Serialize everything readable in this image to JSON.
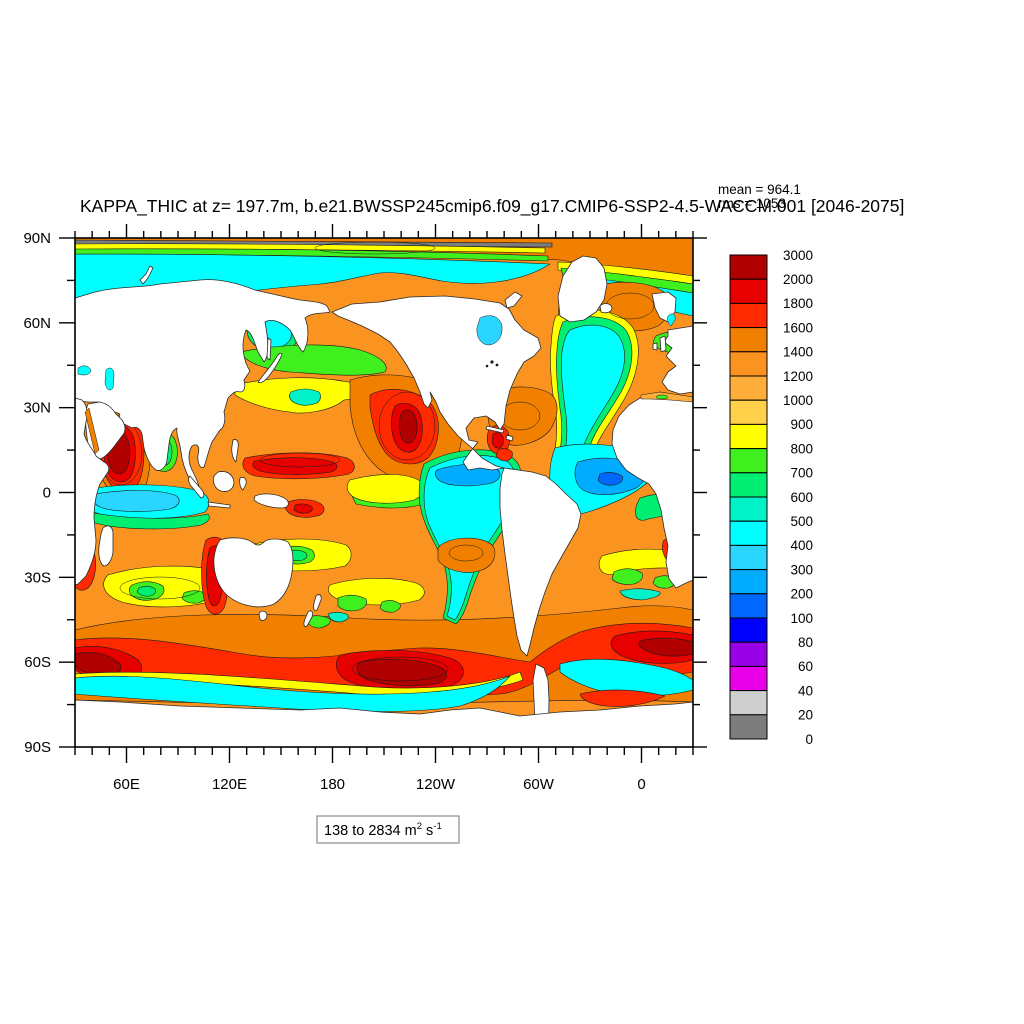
{
  "figure": {
    "title": "KAPPA_THIC at z= 197.7m, b.e21.BWSSP245cmip6.f09_g17.CMIP6-SSP2-4.5-WACCM.001 [2046-2075]",
    "stats": {
      "mean_label": "mean = 964.1",
      "rms_label": "rms = 1053"
    },
    "range_box": {
      "base1": "138 to 2834 m",
      "sup1": "2",
      "base2": " s",
      "sup2": "-1"
    }
  },
  "chart_data": {
    "type": "heatmap",
    "subtype": "filled_contour_world_map",
    "variable": "KAPPA_THIC",
    "depth_label": "z= 197.7m",
    "case": "b.e21.BWSSP245cmip6.f09_g17.CMIP6-SSP2-4.5-WACCM.001",
    "period": "[2046-2075]",
    "mean": 964.1,
    "rms": 1053,
    "data_range": "138 to 2834 m2 s-1",
    "units": "m2 s-1",
    "projection": "cylindrical equidistant, lon 30E-390E, lat 90S-90N, land masked white",
    "levels": [
      0,
      20,
      40,
      60,
      80,
      100,
      200,
      300,
      400,
      500,
      600,
      700,
      800,
      900,
      1000,
      1200,
      1400,
      1600,
      1800,
      2000,
      3000
    ],
    "palette": {
      "0": "#7D7D7D",
      "20": "#CFCFCF",
      "40": "#E800E8",
      "60": "#9800E8",
      "80": "#0000FF",
      "100": "#0068FF",
      "200": "#00ACFF",
      "300": "#2AD5FF",
      "400": "#00FFFF",
      "500": "#00F2C8",
      "600": "#00EE72",
      "700": "#3FEF1E",
      "800": "#FFFF00",
      "900": "#FFD04A",
      "1000": "#FFAE3C",
      "1200": "#FB9321",
      "1400": "#F28000",
      "1600": "#FF2A00",
      "1800": "#E60000",
      "2000": "#B00000"
    },
    "colorbar_labels_top_to_bottom": [
      "3000",
      "2000",
      "1800",
      "1600",
      "1400",
      "1200",
      "1000",
      "900",
      "800",
      "700",
      "600",
      "500",
      "400",
      "300",
      "200",
      "100",
      "80",
      "60",
      "40",
      "20",
      "0"
    ],
    "x_axis": {
      "tick_labels": [
        {
          "lon": 60,
          "label": "60E"
        },
        {
          "lon": 120,
          "label": "120E"
        },
        {
          "lon": 180,
          "label": "180"
        },
        {
          "lon": 240,
          "label": "120W"
        },
        {
          "lon": 300,
          "label": "60W"
        },
        {
          "lon": 360,
          "label": "0"
        }
      ],
      "minor_step_deg": 10,
      "range_lon": [
        30,
        390
      ]
    },
    "y_axis": {
      "tick_labels": [
        {
          "lat": 90,
          "label": "90N"
        },
        {
          "lat": 60,
          "label": "60N"
        },
        {
          "lat": 30,
          "label": "30N"
        },
        {
          "lat": 0,
          "label": "0"
        },
        {
          "lat": -30,
          "label": "30S"
        },
        {
          "lat": -60,
          "label": "60S"
        },
        {
          "lat": -90,
          "label": "90S"
        }
      ],
      "minor_step_deg": 15,
      "range_lat": [
        -90,
        90
      ]
    },
    "land_color": "#FFFFFF",
    "background": "#FFFFFF",
    "frame_color": "#000000"
  }
}
